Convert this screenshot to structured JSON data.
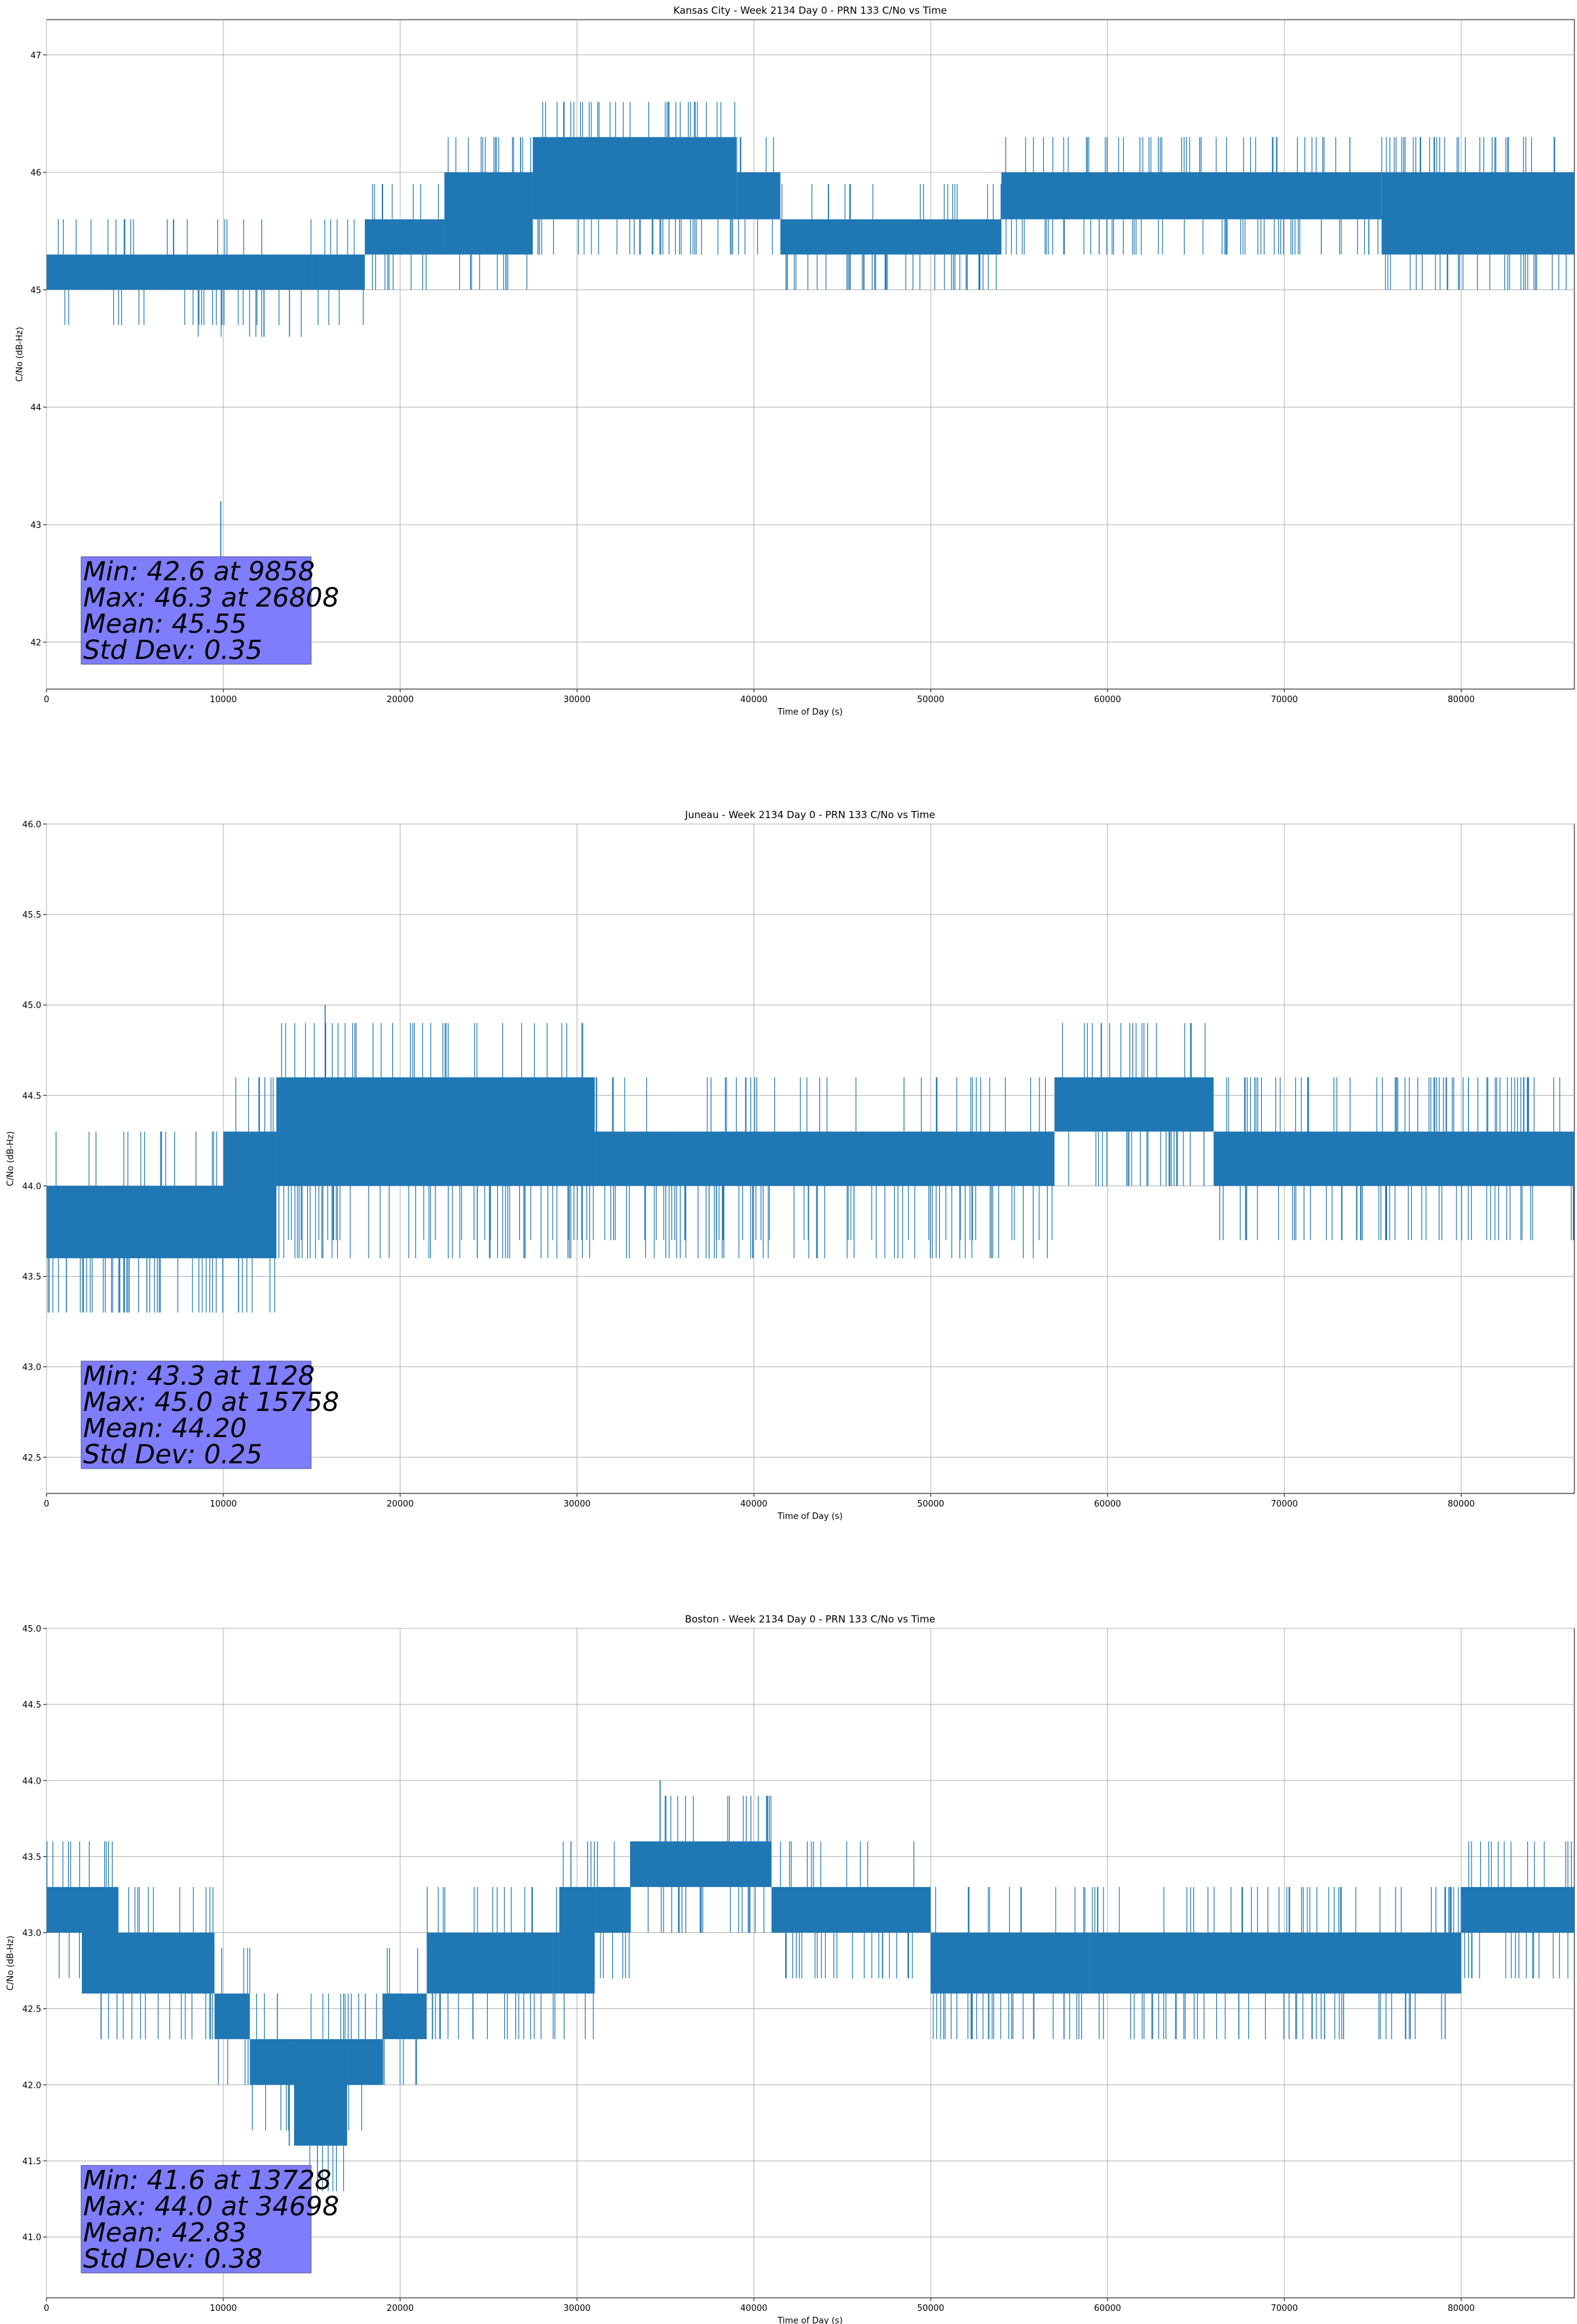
{
  "chart_data": [
    {
      "type": "line",
      "title": "Kansas City - Week 2134 Day 0 - PRN 133 C/No vs Time",
      "xlabel": "Time of Day (s)",
      "ylabel": "C/No (dB-Hz)",
      "xlim": [
        0,
        86400
      ],
      "ylim": [
        41.6,
        47.3
      ],
      "xticks": [
        0,
        10000,
        20000,
        30000,
        40000,
        50000,
        60000,
        70000,
        80000
      ],
      "yticks": [
        "42",
        "43",
        "44",
        "45",
        "46",
        "47"
      ],
      "grid": true,
      "color": "#1f77b4",
      "segments": [
        {
          "x0": 0,
          "x1": 6000,
          "lo": 45.0,
          "hi": 45.3,
          "noise": 0.3
        },
        {
          "x0": 6000,
          "x1": 15000,
          "lo": 45.0,
          "hi": 45.3,
          "noise": 0.4,
          "dips": [
            44.6
          ]
        },
        {
          "x0": 15000,
          "x1": 18000,
          "lo": 45.0,
          "hi": 45.3,
          "noise": 0.3
        },
        {
          "x0": 18000,
          "x1": 22500,
          "lo": 45.3,
          "hi": 45.6,
          "noise": 0.4
        },
        {
          "x0": 22500,
          "x1": 27500,
          "lo": 45.3,
          "hi": 46.0,
          "noise": 0.5
        },
        {
          "x0": 27500,
          "x1": 39000,
          "lo": 45.6,
          "hi": 46.3,
          "noise": 0.6
        },
        {
          "x0": 39000,
          "x1": 41500,
          "lo": 45.6,
          "hi": 46.0,
          "noise": 0.4
        },
        {
          "x0": 41500,
          "x1": 54000,
          "lo": 45.3,
          "hi": 45.6,
          "noise": 0.5,
          "dips": [
            45.0
          ]
        },
        {
          "x0": 54000,
          "x1": 75500,
          "lo": 45.6,
          "hi": 46.0,
          "noise": 0.5
        },
        {
          "x0": 75500,
          "x1": 86400,
          "lo": 45.3,
          "hi": 46.0,
          "noise": 0.6
        }
      ],
      "extremes": {
        "min": {
          "x": 9858,
          "y": 42.6
        },
        "max": {
          "x": 26808,
          "y": 46.3
        }
      },
      "stats": {
        "min": "Min: 42.6 at 9858",
        "max": "Max: 46.3 at 26808",
        "mean": "Mean: 45.55",
        "std": "Std Dev: 0.35"
      }
    },
    {
      "type": "line",
      "title": "Juneau - Week 2134 Day 0 - PRN 133 C/No vs Time",
      "xlabel": "Time of Day (s)",
      "ylabel": "C/No (dB-Hz)",
      "xlim": [
        0,
        86400
      ],
      "ylim": [
        42.3,
        46.0
      ],
      "xticks": [
        0,
        10000,
        20000,
        30000,
        40000,
        50000,
        60000,
        70000,
        80000
      ],
      "yticks": [
        "42.5",
        "43.0",
        "43.5",
        "44.0",
        "44.5",
        "45.0",
        "45.5",
        "46.0"
      ],
      "grid": true,
      "color": "#1f77b4",
      "segments": [
        {
          "x0": 0,
          "x1": 10000,
          "lo": 43.6,
          "hi": 44.0,
          "noise": 0.6,
          "dips": [
            43.3
          ]
        },
        {
          "x0": 10000,
          "x1": 13000,
          "lo": 43.6,
          "hi": 44.3,
          "noise": 0.5
        },
        {
          "x0": 13000,
          "x1": 31000,
          "lo": 44.0,
          "hi": 44.6,
          "noise": 0.6,
          "dips": [
            43.6
          ]
        },
        {
          "x0": 31000,
          "x1": 57000,
          "lo": 44.0,
          "hi": 44.3,
          "noise": 0.5,
          "dips": [
            43.6
          ]
        },
        {
          "x0": 57000,
          "x1": 66000,
          "lo": 44.3,
          "hi": 44.6,
          "noise": 0.5
        },
        {
          "x0": 66000,
          "x1": 86400,
          "lo": 44.0,
          "hi": 44.3,
          "noise": 0.6
        }
      ],
      "extremes": {
        "min": {
          "x": 1128,
          "y": 43.3
        },
        "max": {
          "x": 15758,
          "y": 45.0
        }
      },
      "stats": {
        "min": "Min: 43.3 at 1128",
        "max": "Max: 45.0 at 15758",
        "mean": "Mean: 44.20",
        "std": "Std Dev: 0.25"
      }
    },
    {
      "type": "line",
      "title": "Boston - Week 2134 Day 0 - PRN 133 C/No vs Time",
      "xlabel": "Time of Day (s)",
      "ylabel": "C/No (dB-Hz)",
      "xlim": [
        0,
        86400
      ],
      "ylim": [
        40.6,
        45.0
      ],
      "xticks": [
        0,
        10000,
        20000,
        30000,
        40000,
        50000,
        60000,
        70000,
        80000
      ],
      "yticks": [
        "41.0",
        "41.5",
        "42.0",
        "42.5",
        "43.0",
        "43.5",
        "44.0",
        "44.5",
        "45.0"
      ],
      "grid": true,
      "color": "#1f77b4",
      "segments": [
        {
          "x0": 0,
          "x1": 2000,
          "lo": 43.0,
          "hi": 43.3,
          "noise": 0.5
        },
        {
          "x0": 2000,
          "x1": 4000,
          "lo": 42.6,
          "hi": 43.3,
          "noise": 0.5
        },
        {
          "x0": 4000,
          "x1": 9500,
          "lo": 42.6,
          "hi": 43.0,
          "noise": 0.5
        },
        {
          "x0": 9500,
          "x1": 11500,
          "lo": 42.3,
          "hi": 42.6,
          "noise": 0.4
        },
        {
          "x0": 11500,
          "x1": 14000,
          "lo": 42.0,
          "hi": 42.3,
          "noise": 0.4
        },
        {
          "x0": 14000,
          "x1": 17000,
          "lo": 41.6,
          "hi": 42.3,
          "noise": 0.5
        },
        {
          "x0": 17000,
          "x1": 19000,
          "lo": 42.0,
          "hi": 42.3,
          "noise": 0.4
        },
        {
          "x0": 19000,
          "x1": 21500,
          "lo": 42.3,
          "hi": 42.6,
          "noise": 0.4
        },
        {
          "x0": 21500,
          "x1": 29000,
          "lo": 42.6,
          "hi": 43.0,
          "noise": 0.5
        },
        {
          "x0": 29000,
          "x1": 31000,
          "lo": 42.6,
          "hi": 43.3,
          "noise": 0.5
        },
        {
          "x0": 31000,
          "x1": 33000,
          "lo": 43.0,
          "hi": 43.3,
          "noise": 0.4
        },
        {
          "x0": 33000,
          "x1": 41000,
          "lo": 43.3,
          "hi": 43.6,
          "noise": 0.5
        },
        {
          "x0": 41000,
          "x1": 50000,
          "lo": 43.0,
          "hi": 43.3,
          "noise": 0.4
        },
        {
          "x0": 50000,
          "x1": 59000,
          "lo": 42.6,
          "hi": 43.0,
          "noise": 0.5,
          "dips": [
            42.3
          ]
        },
        {
          "x0": 59000,
          "x1": 80000,
          "lo": 42.6,
          "hi": 43.0,
          "noise": 0.5
        },
        {
          "x0": 80000,
          "x1": 86400,
          "lo": 43.0,
          "hi": 43.3,
          "noise": 0.5
        }
      ],
      "extremes": {
        "min": {
          "x": 13728,
          "y": 41.6
        },
        "max": {
          "x": 34698,
          "y": 44.0
        }
      },
      "stats": {
        "min": "Min: 41.6 at 13728",
        "max": "Max: 44.0 at 34698",
        "mean": "Mean: 42.83",
        "std": "Std Dev: 0.38"
      }
    }
  ]
}
